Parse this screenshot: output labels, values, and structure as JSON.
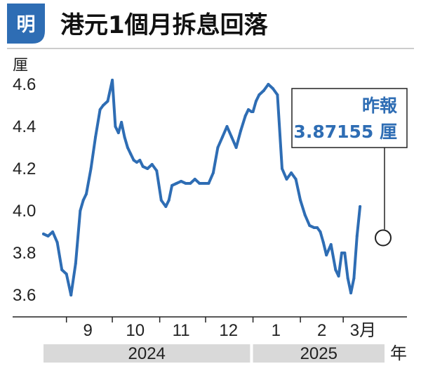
{
  "header": {
    "logo_char": "明",
    "title": "港元1個月拆息回落"
  },
  "colors": {
    "brand": "#2e6db4",
    "line": "#2e6db4",
    "year_band": "#d9d9d9",
    "axis": "#222222"
  },
  "chart_data": {
    "type": "line",
    "title": "港元1個月拆息回落",
    "ylabel": "厘",
    "ylim": [
      3.55,
      4.65
    ],
    "yticks": [
      {
        "value": 3.6,
        "label": "3.6"
      },
      {
        "value": 3.8,
        "label": "3.8"
      },
      {
        "value": 4.0,
        "label": "4.0"
      },
      {
        "value": 4.2,
        "label": "4.2"
      },
      {
        "value": 4.4,
        "label": "4.4"
      },
      {
        "value": 4.6,
        "label": "4.6"
      }
    ],
    "x_unit": "年",
    "xlim": [
      "2024-08-17",
      "2025-03-28"
    ],
    "month_boundaries": [
      "2024-09-01",
      "2024-10-01",
      "2024-11-01",
      "2024-12-01",
      "2025-01-01",
      "2025-02-01",
      "2025-03-01"
    ],
    "month_labels": [
      {
        "label": "9",
        "date": "2024-09-15"
      },
      {
        "label": "10",
        "date": "2024-10-16"
      },
      {
        "label": "11",
        "date": "2024-11-15"
      },
      {
        "label": "12",
        "date": "2024-12-16"
      },
      {
        "label": "1",
        "date": "2025-01-16"
      },
      {
        "label": "2",
        "date": "2025-02-15"
      },
      {
        "label": "3月",
        "date": "2025-03-14"
      }
    ],
    "year_bands": [
      {
        "label": "2024",
        "start": "2024-08-17",
        "end": "2024-12-31"
      },
      {
        "label": "2025",
        "start": "2025-01-01",
        "end": "2025-03-28"
      }
    ],
    "series": [
      {
        "x": [
          "2024-08-17",
          "2024-08-20",
          "2024-08-23",
          "2024-08-26",
          "2024-08-29",
          "2024-09-01",
          "2024-09-04",
          "2024-09-07",
          "2024-09-10",
          "2024-09-12",
          "2024-09-14",
          "2024-09-17",
          "2024-09-20",
          "2024-09-23",
          "2024-09-25",
          "2024-09-28",
          "2024-10-01",
          "2024-10-03",
          "2024-10-05",
          "2024-10-07",
          "2024-10-09",
          "2024-10-11",
          "2024-10-13",
          "2024-10-15",
          "2024-10-17",
          "2024-10-19",
          "2024-10-21",
          "2024-10-24",
          "2024-10-27",
          "2024-10-30",
          "2024-11-02",
          "2024-11-05",
          "2024-11-07",
          "2024-11-09",
          "2024-11-12",
          "2024-11-15",
          "2024-11-18",
          "2024-11-21",
          "2024-11-24",
          "2024-11-27",
          "2024-11-30",
          "2024-12-03",
          "2024-12-06",
          "2024-12-09",
          "2024-12-12",
          "2024-12-15",
          "2024-12-18",
          "2024-12-21",
          "2024-12-24",
          "2024-12-27",
          "2024-12-29",
          "2024-12-31",
          "2025-01-01",
          "2025-01-03",
          "2025-01-05",
          "2025-01-08",
          "2025-01-11",
          "2025-01-14",
          "2025-01-17",
          "2025-01-20",
          "2025-01-23",
          "2025-01-26",
          "2025-01-29",
          "2025-02-01",
          "2025-02-04",
          "2025-02-07",
          "2025-02-10",
          "2025-02-12",
          "2025-02-14",
          "2025-02-16",
          "2025-02-18",
          "2025-02-21",
          "2025-02-24",
          "2025-02-26",
          "2025-02-28",
          "2025-03-02",
          "2025-03-04",
          "2025-03-06",
          "2025-03-08",
          "2025-03-10",
          "2025-03-12"
        ],
        "values": [
          3.89,
          3.88,
          3.9,
          3.85,
          3.72,
          3.7,
          3.6,
          3.75,
          4.0,
          4.05,
          4.08,
          4.2,
          4.35,
          4.48,
          4.5,
          4.52,
          4.62,
          4.4,
          4.37,
          4.42,
          4.35,
          4.3,
          4.27,
          4.24,
          4.23,
          4.24,
          4.21,
          4.2,
          4.22,
          4.19,
          4.05,
          4.02,
          4.05,
          4.12,
          4.13,
          4.14,
          4.13,
          4.13,
          4.15,
          4.13,
          4.13,
          4.13,
          4.18,
          4.3,
          4.35,
          4.4,
          4.35,
          4.3,
          4.38,
          4.45,
          4.48,
          4.47,
          4.47,
          4.52,
          4.55,
          4.57,
          4.6,
          4.58,
          4.55,
          4.2,
          4.15,
          4.18,
          4.15,
          4.05,
          3.98,
          3.93,
          3.92,
          3.92,
          3.9,
          3.85,
          3.79,
          3.84,
          3.72,
          3.69,
          3.8,
          3.8,
          3.68,
          3.61,
          3.68,
          3.88,
          4.02
        ]
      }
    ],
    "annotation": {
      "x": "2025-03-28",
      "y": 3.87155,
      "line1": "昨報",
      "line2": "3.87155 厘"
    }
  }
}
